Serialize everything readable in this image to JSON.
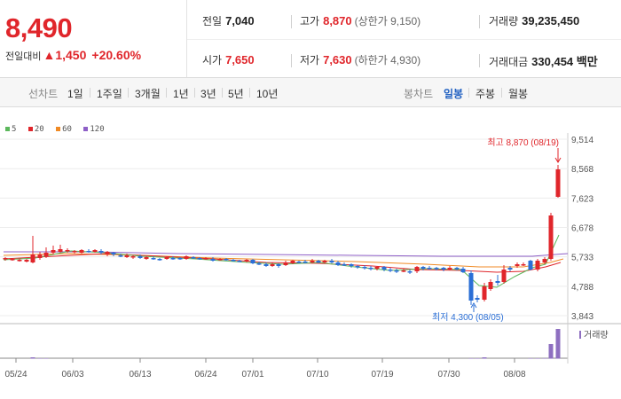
{
  "header": {
    "price": "8,490",
    "change_label": "전일대비",
    "change_arrow": "▲",
    "change_value": "1,450",
    "change_pct": "+20.60%",
    "prev_close_label": "전일",
    "prev_close": "7,040",
    "high_label": "고가",
    "high": "8,870",
    "upper_limit": "(상한가 9,150)",
    "volume_label": "거래량",
    "volume": "39,235,450",
    "open_label": "시가",
    "open": "7,650",
    "low_label": "저가",
    "low": "7,630",
    "lower_limit": "(하한가 4,930)",
    "amount_label": "거래대금",
    "amount": "330,454 백만"
  },
  "tabs": {
    "line_caption": "선차트",
    "line_items": [
      "1일",
      "1주일",
      "3개월",
      "1년",
      "3년",
      "5년",
      "10년"
    ],
    "candle_caption": "봉차트",
    "candle_items": [
      "일봉",
      "주봉",
      "월봉"
    ],
    "candle_selected": "일봉"
  },
  "legend": [
    {
      "label": "5",
      "color": "#5cb85c"
    },
    {
      "label": "20",
      "color": "#e0262b"
    },
    {
      "label": "60",
      "color": "#f08a24"
    },
    {
      "label": "120",
      "color": "#8e5fc7"
    }
  ],
  "chart_data": {
    "type": "candlestick",
    "y_ticks": [
      "9,514",
      "8,568",
      "7,623",
      "6,678",
      "5,733",
      "4,788",
      "3,843"
    ],
    "y_range": [
      3843,
      9514
    ],
    "x_ticks": [
      "05/24",
      "06/03",
      "06/13",
      "06/24",
      "07/01",
      "07/10",
      "07/19",
      "07/30",
      "08/08"
    ],
    "annotations": {
      "high": "최고 8,870 (08/19)",
      "low": "최저 4,300 (08/05)"
    },
    "volume_label": "거래량",
    "colors": {
      "up": "#e0262b",
      "down": "#2b6fd6"
    }
  }
}
